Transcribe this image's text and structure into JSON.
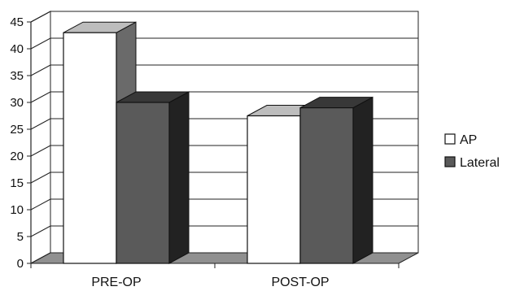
{
  "chart_data": {
    "type": "bar",
    "style": "3d-clustered-column",
    "categories": [
      "PRE-OP",
      "POST-OP"
    ],
    "series": [
      {
        "name": "AP",
        "values": [
          43,
          27.5
        ],
        "color": "#ffffff"
      },
      {
        "name": "Lateral",
        "values": [
          30,
          29
        ],
        "color": "#5a5a5a"
      }
    ],
    "ylim": [
      0,
      45
    ],
    "yticks": [
      0,
      5,
      10,
      15,
      20,
      25,
      30,
      35,
      40,
      45
    ],
    "grid": true,
    "legend_position": "right",
    "colors": {
      "floor": "#909090",
      "wall": "#ffffff",
      "gridline": "#000000"
    }
  }
}
